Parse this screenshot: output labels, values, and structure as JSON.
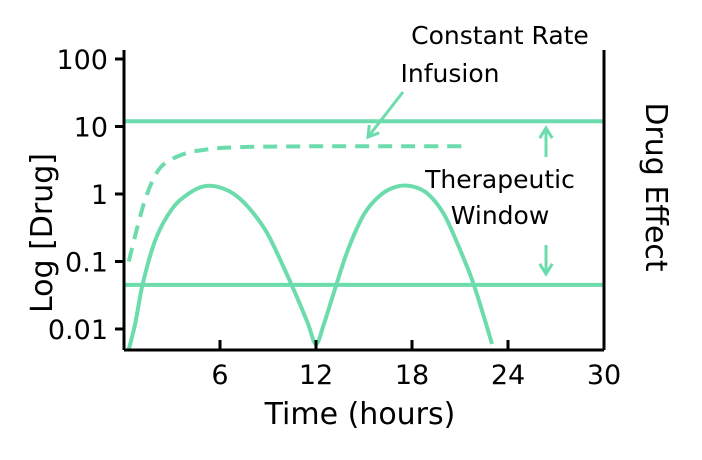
{
  "chart_data": {
    "type": "line",
    "title": "",
    "xlabel": "Time (hours)",
    "ylabel": "Log [Drug]",
    "y2label": "Drug Effect",
    "xlim": [
      0,
      30
    ],
    "ylim": [
      0.01,
      100
    ],
    "yscale": "log",
    "grid": false,
    "x_ticks": [
      6,
      12,
      18,
      24,
      30
    ],
    "y_ticks": [
      {
        "value": 100,
        "label": "100"
      },
      {
        "value": 10,
        "label": "10"
      },
      {
        "value": 1,
        "label": "1"
      },
      {
        "value": 0.1,
        "label": "0.1"
      },
      {
        "value": 0.01,
        "label": "0.01"
      }
    ],
    "colors": {
      "series": "#6ddcad",
      "axis": "#000000"
    },
    "series": [
      {
        "style": "dashed",
        "x": [
          0.3,
          0.8,
          1.3,
          1.8,
          2.3,
          3,
          4,
          5,
          6,
          8,
          10,
          12,
          14,
          16,
          18,
          20,
          21.5
        ],
        "y": [
          0.1,
          0.3,
          0.8,
          1.6,
          2.5,
          3.3,
          4.1,
          4.5,
          4.8,
          5.0,
          5.05,
          5.1,
          5.1,
          5.1,
          5.1,
          5.1,
          5.1
        ]
      },
      {
        "style": "solid",
        "x": [
          0.3,
          0.7,
          1.2,
          2,
          3,
          4,
          5,
          6,
          7,
          8,
          9,
          10,
          10.8,
          11.5,
          12,
          12.5,
          13.2,
          14,
          15,
          16,
          17,
          18,
          19,
          20,
          21,
          21.8,
          22.5,
          23
        ],
        "y": [
          0.005,
          0.012,
          0.05,
          0.22,
          0.6,
          1.0,
          1.3,
          1.25,
          0.95,
          0.55,
          0.25,
          0.08,
          0.03,
          0.012,
          0.006,
          0.012,
          0.04,
          0.15,
          0.5,
          0.95,
          1.28,
          1.3,
          1.0,
          0.5,
          0.15,
          0.05,
          0.015,
          0.006
        ]
      },
      {
        "style": "solid",
        "x": [
          0,
          30
        ],
        "y": [
          12,
          12
        ]
      },
      {
        "style": "solid",
        "x": [
          0,
          30
        ],
        "y": [
          0.045,
          0.045
        ]
      }
    ],
    "annotations": [
      {
        "text": "Constant Rate",
        "line": 1
      },
      {
        "text": "Infusion",
        "line": 2
      },
      {
        "text": "Therapeutic",
        "line": 1
      },
      {
        "text": "Window",
        "line": 2
      }
    ]
  }
}
